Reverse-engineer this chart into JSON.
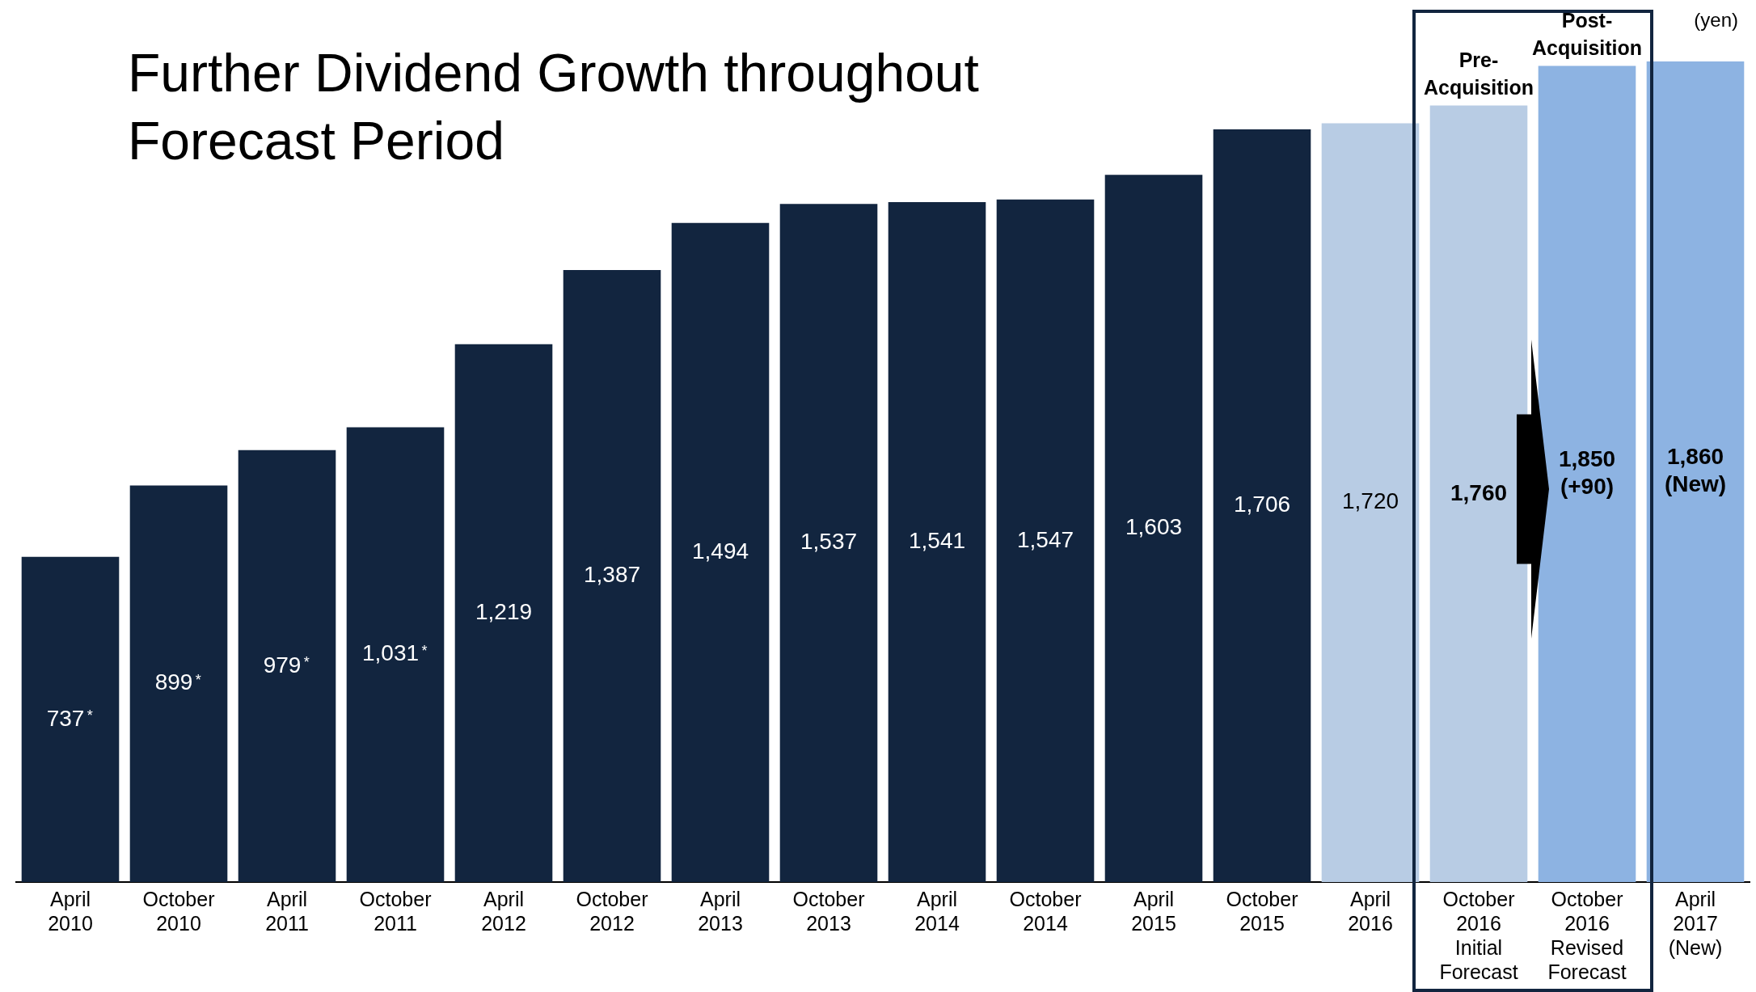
{
  "chart_data": {
    "type": "bar",
    "title": "Further Dividend Growth throughout Forecast Period",
    "categories": [
      "April 2010",
      "October 2010",
      "April 2011",
      "October 2011",
      "April 2012",
      "October 2012",
      "April 2013",
      "October 2013",
      "April 2014",
      "October 2014",
      "April 2015",
      "October 2015",
      "April 2016",
      "October 2016 Initial Forecast",
      "October 2016 Revised Forecast",
      "April 2017 (New)"
    ],
    "values": [
      737,
      899,
      979,
      1031,
      1219,
      1387,
      1494,
      1537,
      1541,
      1547,
      1603,
      1706,
      1720,
      1760,
      1850,
      1860
    ],
    "value_labels": [
      "737*",
      "899*",
      "979*",
      "1,031*",
      "1,219",
      "1,387",
      "1,494",
      "1,537",
      "1,541",
      "1,547",
      "1,603",
      "1,706",
      "1,720",
      "1,760",
      "1,850 (+90)",
      "1,860 (New)"
    ],
    "colors": [
      "#12253f",
      "#12253f",
      "#12253f",
      "#12253f",
      "#12253f",
      "#12253f",
      "#12253f",
      "#12253f",
      "#12253f",
      "#12253f",
      "#12253f",
      "#12253f",
      "#b8cce4",
      "#b8cce4",
      "#8db3e2",
      "#8db3e2"
    ],
    "annotations": [
      "Pre-Acquisition",
      "Post-Acquisition",
      "(yen)"
    ],
    "grid": false,
    "legend": false
  }
}
